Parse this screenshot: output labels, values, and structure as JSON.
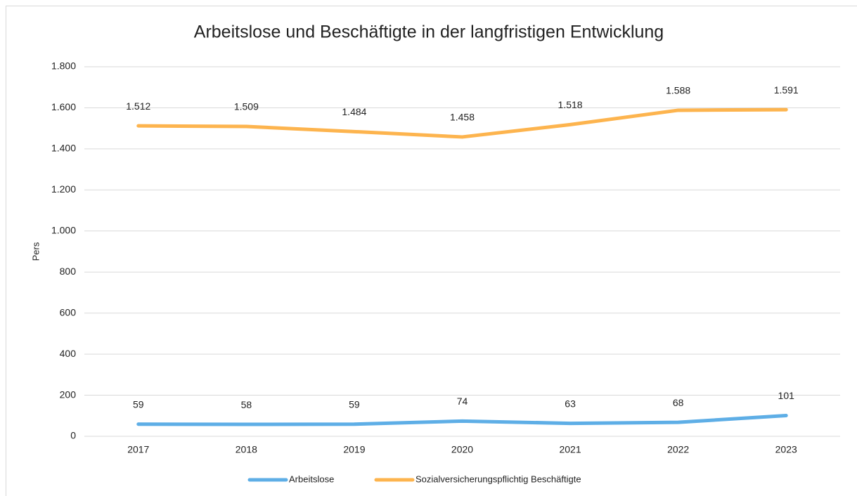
{
  "chart_data": {
    "type": "line",
    "title": "Arbeitslose und Beschäftigte in der langfristigen Entwicklung",
    "ylabel": "Pers",
    "categories": [
      "2017",
      "2018",
      "2019",
      "2020",
      "2021",
      "2022",
      "2023"
    ],
    "series": [
      {
        "name": "Arbeitslose",
        "color": "#5eaee6",
        "values": [
          59,
          58,
          59,
          74,
          63,
          68,
          101
        ]
      },
      {
        "name": "Sozialversicherungspflichtig Beschäftigte",
        "color": "#fdb44e",
        "values": [
          1512,
          1509,
          1484,
          1458,
          1518,
          1588,
          1591
        ],
        "value_labels": [
          "1.512",
          "1.509",
          "1.484",
          "1.458",
          "1.518",
          "1.588",
          "1.591"
        ]
      }
    ],
    "ylim": [
      0,
      1800
    ],
    "yticks": [
      0,
      200,
      400,
      600,
      800,
      {
        "value": 1000,
        "label": "1.000"
      },
      {
        "value": 1200,
        "label": "1.200"
      },
      {
        "value": 1400,
        "label": "1.400"
      },
      {
        "value": 1600,
        "label": "1.600"
      },
      {
        "value": 1800,
        "label": "1.800"
      }
    ],
    "grid": true,
    "legend": "bottom"
  }
}
